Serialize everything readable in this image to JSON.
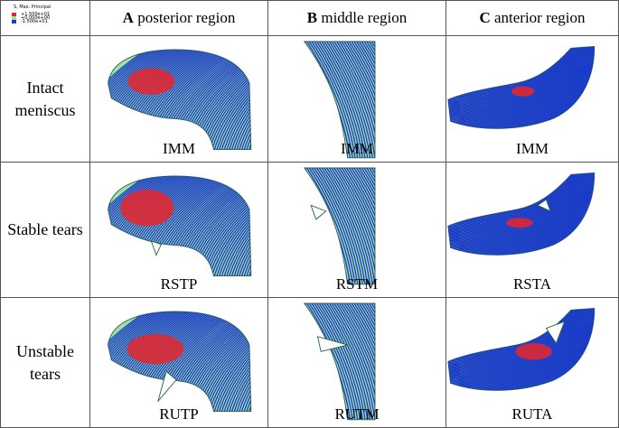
{
  "legend": {
    "title": "S, Max. Principal",
    "entries": [
      {
        "label": "+1.500e+01",
        "color": "#e8262a"
      },
      {
        "label": "+0.000e+00",
        "color": "#9fe0a8"
      },
      {
        "label": "-1.500e+01",
        "color": "#1838c8"
      }
    ]
  },
  "columns": [
    {
      "letter": "A",
      "label": "posterior region"
    },
    {
      "letter": "B",
      "label": "middle region"
    },
    {
      "letter": "C",
      "label": "anterior region"
    }
  ],
  "rows": [
    {
      "label_line1": "Intact",
      "label_line2": "meniscus",
      "captions": [
        "IMM",
        "IMM",
        "IMM"
      ]
    },
    {
      "label_line1": "Stable tears",
      "label_line2": "",
      "captions": [
        "RSTP",
        "RSTM",
        "RSTA"
      ]
    },
    {
      "label_line1": "Unstable",
      "label_line2": "tears",
      "captions": [
        "RUTP",
        "RUTM",
        "RUTA"
      ]
    }
  ],
  "colors": {
    "stress_high": "#e8262a",
    "stress_zero": "#9fe0a8",
    "stress_low": "#1838c8"
  }
}
